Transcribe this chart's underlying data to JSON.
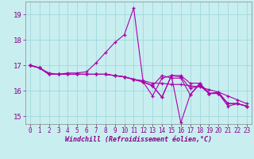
{
  "xlabel": "Windchill (Refroidissement éolien,°C)",
  "bg_color": "#c8eef0",
  "line_color": "#aa00aa",
  "xlim": [
    -0.5,
    23.5
  ],
  "ylim": [
    14.7,
    19.5
  ],
  "yticks": [
    15,
    16,
    17,
    18,
    19
  ],
  "xticks": [
    0,
    1,
    2,
    3,
    4,
    5,
    6,
    7,
    8,
    9,
    10,
    11,
    12,
    13,
    14,
    15,
    16,
    17,
    18,
    19,
    20,
    21,
    22,
    23
  ],
  "grid_color": "#a0d8dc",
  "series": [
    [
      17.0,
      16.9,
      16.7,
      16.65,
      16.7,
      16.7,
      16.75,
      17.1,
      17.5,
      17.9,
      18.2,
      19.25,
      16.35,
      15.8,
      16.5,
      16.6,
      16.6,
      16.3,
      16.3,
      15.9,
      15.9,
      15.5,
      15.5,
      15.4
    ],
    [
      17.0,
      16.9,
      16.65,
      16.65,
      16.65,
      16.65,
      16.65,
      16.65,
      16.65,
      16.6,
      16.55,
      16.45,
      16.4,
      16.3,
      16.3,
      16.25,
      16.25,
      16.2,
      16.15,
      16.05,
      15.95,
      15.8,
      15.65,
      15.5
    ],
    [
      17.0,
      16.9,
      16.65,
      16.65,
      16.65,
      16.65,
      16.65,
      16.65,
      16.65,
      16.6,
      16.55,
      16.45,
      16.35,
      16.2,
      15.75,
      16.6,
      16.55,
      16.1,
      16.2,
      15.9,
      15.95,
      15.5,
      15.5,
      15.4
    ],
    [
      17.0,
      16.9,
      16.65,
      16.65,
      16.65,
      16.65,
      16.65,
      16.65,
      16.65,
      16.6,
      16.55,
      16.45,
      16.35,
      16.2,
      15.75,
      16.6,
      14.75,
      15.85,
      16.3,
      15.9,
      15.9,
      15.4,
      15.5,
      15.4
    ],
    [
      17.0,
      16.9,
      16.65,
      16.65,
      16.65,
      16.65,
      16.65,
      16.65,
      16.65,
      16.6,
      16.55,
      16.45,
      16.35,
      16.2,
      16.6,
      16.5,
      16.5,
      15.85,
      16.25,
      15.9,
      15.9,
      15.5,
      15.5,
      15.4
    ]
  ]
}
